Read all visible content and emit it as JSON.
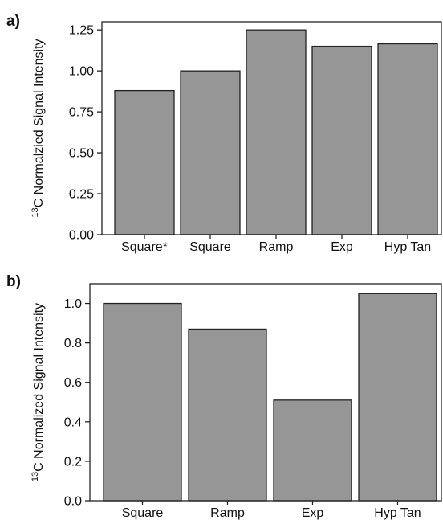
{
  "chart_data": [
    {
      "type": "bar",
      "panel_label": "a)",
      "categories": [
        "Square*",
        "Square",
        "Ramp",
        "Exp",
        "Hyp Tan"
      ],
      "values": [
        0.88,
        1.0,
        1.25,
        1.15,
        1.165
      ],
      "ylabel_sup": "13",
      "ylabel": "C Normalzied Signal Intensity",
      "ylim": [
        0,
        1.3
      ],
      "yticks": [
        0.0,
        0.25,
        0.5,
        0.75,
        1.0,
        1.25
      ],
      "ytick_labels": [
        "0.00",
        "0.25",
        "0.50",
        "0.75",
        "1.00",
        "1.25"
      ],
      "grid": false,
      "bar_color": "#969696"
    },
    {
      "type": "bar",
      "panel_label": "b)",
      "categories": [
        "Square",
        "Ramp",
        "Exp",
        "Hyp Tan"
      ],
      "values": [
        1.0,
        0.87,
        0.51,
        1.05
      ],
      "ylabel_sup": "13",
      "ylabel": "C Normalized Signal Intensity",
      "ylim": [
        0,
        1.1
      ],
      "yticks": [
        0.0,
        0.2,
        0.4,
        0.6,
        0.8,
        1.0
      ],
      "ytick_labels": [
        "0.0",
        "0.2",
        "0.4",
        "0.6",
        "0.8",
        "1.0"
      ],
      "grid": false,
      "bar_color": "#969696"
    }
  ]
}
